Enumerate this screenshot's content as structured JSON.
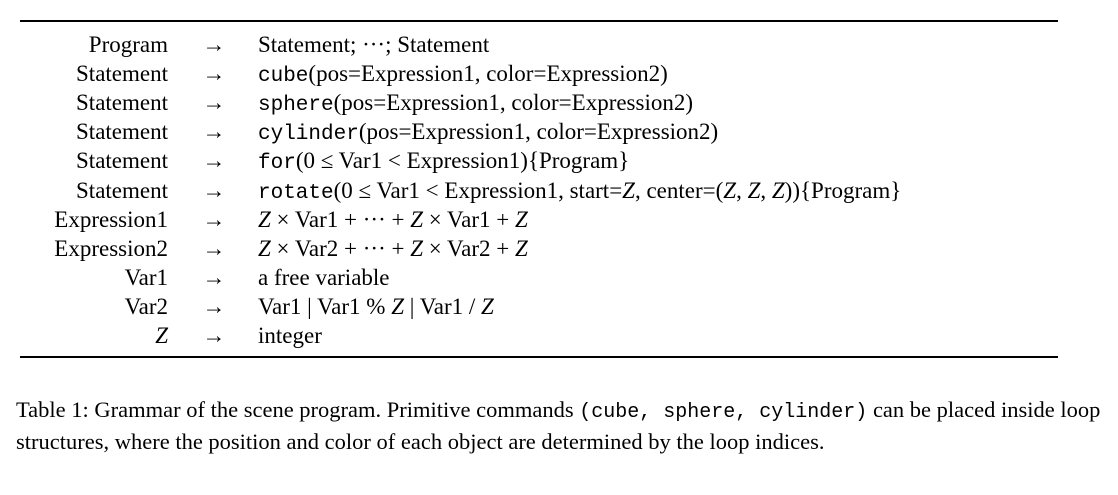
{
  "table": {
    "rows": [
      {
        "lhs": "Program",
        "arrow": "→",
        "rhs": [
          {
            "t": "Statement; ···; Statement",
            "s": "rm"
          }
        ]
      },
      {
        "lhs": "Statement",
        "arrow": "→",
        "rhs": [
          {
            "t": "cube",
            "s": "tt"
          },
          {
            "t": "(pos=Expression1, color=Expression2)",
            "s": "rm"
          }
        ]
      },
      {
        "lhs": "Statement",
        "arrow": "→",
        "rhs": [
          {
            "t": "sphere",
            "s": "tt"
          },
          {
            "t": "(pos=Expression1, color=Expression2)",
            "s": "rm"
          }
        ]
      },
      {
        "lhs": "Statement",
        "arrow": "→",
        "rhs": [
          {
            "t": "cylinder",
            "s": "tt"
          },
          {
            "t": "(pos=Expression1, color=Expression2)",
            "s": "rm"
          }
        ]
      },
      {
        "lhs": "Statement",
        "arrow": "→",
        "rhs": [
          {
            "t": "for",
            "s": "tt"
          },
          {
            "t": "(0 ≤ Var1 < Expression1){Program}",
            "s": "rm"
          }
        ]
      },
      {
        "lhs": "Statement",
        "arrow": "→",
        "rhs": [
          {
            "t": "rotate",
            "s": "tt"
          },
          {
            "t": "(0 ≤ Var1 < Expression1, start=",
            "s": "rm"
          },
          {
            "t": "Z",
            "s": "it"
          },
          {
            "t": ", center=(",
            "s": "rm"
          },
          {
            "t": "Z",
            "s": "it"
          },
          {
            "t": ", ",
            "s": "rm"
          },
          {
            "t": "Z",
            "s": "it"
          },
          {
            "t": ", ",
            "s": "rm"
          },
          {
            "t": "Z",
            "s": "it"
          },
          {
            "t": ")){Program}",
            "s": "rm"
          }
        ]
      },
      {
        "lhs": "Expression1",
        "arrow": "→",
        "rhs": [
          {
            "t": "Z",
            "s": "it"
          },
          {
            "t": " × Var1 + ··· + ",
            "s": "rm"
          },
          {
            "t": "Z",
            "s": "it"
          },
          {
            "t": " × Var1 + ",
            "s": "rm"
          },
          {
            "t": "Z",
            "s": "it"
          }
        ]
      },
      {
        "lhs": "Expression2",
        "arrow": "→",
        "rhs": [
          {
            "t": "Z",
            "s": "it"
          },
          {
            "t": " × Var2 + ··· + ",
            "s": "rm"
          },
          {
            "t": "Z",
            "s": "it"
          },
          {
            "t": " × Var2 + ",
            "s": "rm"
          },
          {
            "t": "Z",
            "s": "it"
          }
        ]
      },
      {
        "lhs": "Var1",
        "arrow": "→",
        "rhs": [
          {
            "t": "a free variable",
            "s": "rm"
          }
        ]
      },
      {
        "lhs": "Var2",
        "arrow": "→",
        "rhs": [
          {
            "t": "Var1 | Var1 % ",
            "s": "rm"
          },
          {
            "t": "Z",
            "s": "it"
          },
          {
            "t": " | Var1 / ",
            "s": "rm"
          },
          {
            "t": "Z",
            "s": "it"
          }
        ]
      },
      {
        "lhs": "Z",
        "lhs_italic": true,
        "arrow": "→",
        "rhs": [
          {
            "t": "integer",
            "s": "rm"
          }
        ]
      }
    ]
  },
  "caption": {
    "parts": [
      {
        "t": "Table 1: Grammar of the scene program. Primitive commands ",
        "s": "rm"
      },
      {
        "t": "(cube, sphere, cylinder)",
        "s": "tt"
      },
      {
        "t": " can be placed inside loop structures, where the position and color of each object are determined by the loop indices.",
        "s": "rm"
      }
    ]
  }
}
